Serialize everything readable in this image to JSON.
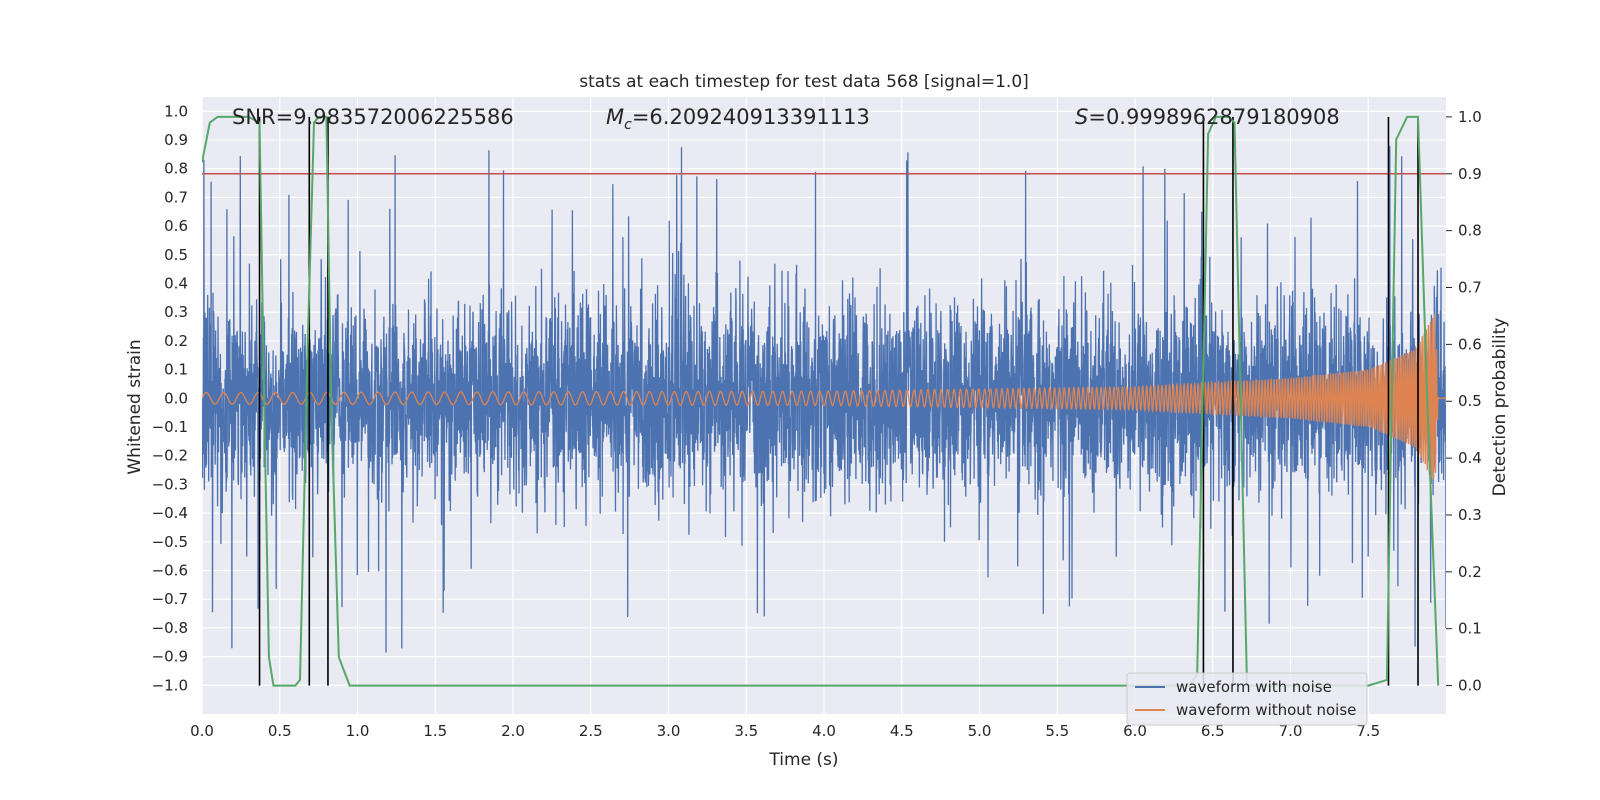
{
  "chart_data": {
    "type": "line",
    "title": "stats at each timestep for test data 568 [signal=1.0]",
    "xlabel": "Time (s)",
    "ylabel": "Whitened strain",
    "y2label": "Detection probability",
    "xlim": [
      0.0,
      8.0
    ],
    "ylim": [
      -1.1,
      1.05
    ],
    "y2lim": [
      -0.05,
      1.035
    ],
    "grid": true,
    "legend_position": "lower-right",
    "x_ticks": [
      "0.0",
      "0.5",
      "1.0",
      "1.5",
      "2.0",
      "2.5",
      "3.0",
      "3.5",
      "4.0",
      "4.5",
      "5.0",
      "5.5",
      "6.0",
      "6.5",
      "7.0",
      "7.5"
    ],
    "y_ticks": [
      "1.0",
      "0.9",
      "0.8",
      "0.7",
      "0.6",
      "0.5",
      "0.4",
      "0.3",
      "0.2",
      "0.1",
      "0.0",
      "−0.1",
      "−0.2",
      "−0.3",
      "−0.4",
      "−0.5",
      "−0.6",
      "−0.7",
      "−0.8",
      "−0.9",
      "−1.0"
    ],
    "y2_ticks": [
      "1.0",
      "0.9",
      "0.8",
      "0.7",
      "0.6",
      "0.5",
      "0.4",
      "0.3",
      "0.2",
      "0.1",
      "0.0"
    ],
    "annotations": {
      "snr": "SNR=9.983572006225586",
      "mc_symbol": "M",
      "mc_subscript": "c",
      "mc_value": "=6.209240913391113",
      "s_symbol": "S",
      "s_value": "=0.9998962879180908"
    },
    "series": [
      {
        "name": "waveform with noise",
        "color": "#4c72b0",
        "axis": "left",
        "description": "noisy whitened strain, roughly ±0.45 with spikes up to ±0.94",
        "envelope_typical": 0.42,
        "spike_max": 0.94,
        "x_range": [
          0.0,
          8.0
        ]
      },
      {
        "name": "waveform without noise",
        "color": "#dd8452",
        "axis": "left",
        "description": "chirp signal with growing amplitude",
        "x_range": [
          0.0,
          8.0
        ],
        "amplitude_points": [
          [
            0.0,
            0.02
          ],
          [
            4.0,
            0.025
          ],
          [
            6.0,
            0.04
          ],
          [
            7.0,
            0.07
          ],
          [
            7.5,
            0.1
          ],
          [
            7.8,
            0.17
          ],
          [
            7.9,
            0.27
          ],
          [
            7.93,
            0.3
          ],
          [
            7.95,
            0.0
          ]
        ]
      },
      {
        "color": "#55a868",
        "axis": "right",
        "x": [
          0.0,
          0.05,
          0.1,
          0.2,
          0.3,
          0.37,
          0.4,
          0.43,
          0.46,
          0.6,
          0.63,
          0.68,
          0.72,
          0.75,
          0.8,
          0.83,
          0.88,
          0.95,
          6.35,
          6.4,
          6.47,
          6.52,
          6.6,
          6.64,
          6.68,
          6.72,
          7.5,
          7.62,
          7.68,
          7.75,
          7.82,
          7.88,
          7.95
        ],
        "y": [
          0.92,
          0.99,
          1.0,
          1.0,
          1.0,
          0.99,
          0.5,
          0.05,
          0.0,
          0.0,
          0.01,
          0.6,
          0.99,
          1.0,
          1.0,
          0.5,
          0.05,
          0.0,
          0.0,
          0.02,
          0.97,
          1.0,
          1.0,
          0.99,
          0.5,
          0.0,
          0.0,
          0.01,
          0.96,
          1.0,
          1.0,
          0.5,
          0.0
        ]
      },
      {
        "color": "#c44e52",
        "axis": "right",
        "constant": 0.9
      }
    ],
    "vertical_markers": {
      "color": "#000000",
      "x": [
        0.37,
        0.69,
        0.81,
        6.44,
        6.63,
        7.63,
        7.82
      ]
    }
  }
}
